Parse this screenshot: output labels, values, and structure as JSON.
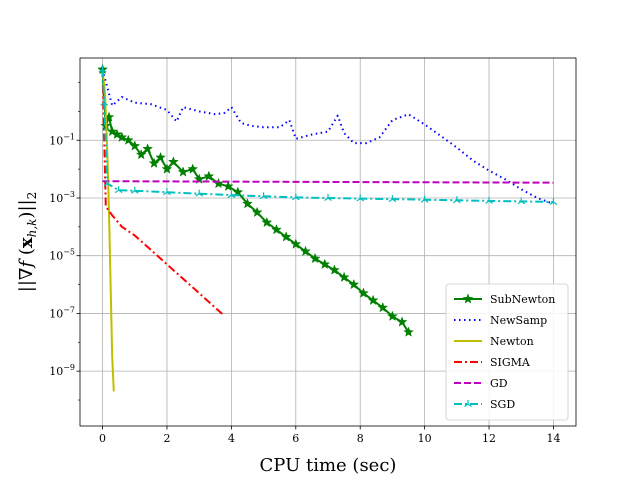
{
  "chart_data": {
    "type": "line",
    "title": "",
    "xlabel": "CPU time (sec)",
    "ylabel": "||∇f(x_{h,k})||_2",
    "ylabel_parts": {
      "norm_open": "||∇",
      "f": "f",
      "paren_open": " (",
      "x": "x",
      "sub": "h,k",
      "paren_close": ")",
      "norm_close": "||",
      "outer_sub": "2"
    },
    "xlim": [
      -0.7,
      14.7
    ],
    "ylim_log10": [
      -10.9,
      1.85
    ],
    "y_scale": "log",
    "grid": true,
    "legend_position": "lower-right",
    "x_ticks": [
      0,
      2,
      4,
      6,
      8,
      10,
      12,
      14
    ],
    "x_tick_labels": [
      "0",
      "2",
      "4",
      "6",
      "8",
      "10",
      "12",
      "14"
    ],
    "y_ticks_log10": [
      -1,
      -3,
      -5,
      -7,
      -9
    ],
    "y_tick_mantissa": "10",
    "y_tick_exponents": [
      "−1",
      "−3",
      "−5",
      "−7",
      "−9"
    ],
    "series": [
      {
        "name": "SubNewton",
        "color": "#008000",
        "dash": "solid",
        "marker": "star",
        "points": [
          [
            0,
            1.45
          ],
          [
            0.1,
            -0.5
          ],
          [
            0.2,
            -0.2
          ],
          [
            0.3,
            -0.7
          ],
          [
            0.45,
            -0.8
          ],
          [
            0.6,
            -0.9
          ],
          [
            0.8,
            -1.0
          ],
          [
            1.0,
            -1.2
          ],
          [
            1.2,
            -1.5
          ],
          [
            1.4,
            -1.3
          ],
          [
            1.6,
            -1.8
          ],
          [
            1.8,
            -1.6
          ],
          [
            2.0,
            -2.0
          ],
          [
            2.2,
            -1.75
          ],
          [
            2.5,
            -2.1
          ],
          [
            2.8,
            -2.0
          ],
          [
            3.0,
            -2.35
          ],
          [
            3.3,
            -2.25
          ],
          [
            3.6,
            -2.5
          ],
          [
            3.9,
            -2.6
          ],
          [
            4.2,
            -2.8
          ],
          [
            4.5,
            -3.2
          ],
          [
            4.8,
            -3.5
          ],
          [
            5.1,
            -3.85
          ],
          [
            5.4,
            -4.1
          ],
          [
            5.7,
            -4.35
          ],
          [
            6.0,
            -4.6
          ],
          [
            6.3,
            -4.85
          ],
          [
            6.6,
            -5.1
          ],
          [
            6.9,
            -5.3
          ],
          [
            7.2,
            -5.5
          ],
          [
            7.5,
            -5.75
          ],
          [
            7.8,
            -6.0
          ],
          [
            8.1,
            -6.3
          ],
          [
            8.4,
            -6.55
          ],
          [
            8.7,
            -6.8
          ],
          [
            9.0,
            -7.1
          ],
          [
            9.3,
            -7.3
          ],
          [
            9.5,
            -7.65
          ]
        ]
      },
      {
        "name": "NewSamp",
        "color": "#0000ff",
        "dash": "dotted",
        "marker": "none",
        "points": [
          [
            0,
            1.45
          ],
          [
            0.3,
            0.2
          ],
          [
            0.6,
            0.5
          ],
          [
            1.0,
            0.3
          ],
          [
            1.5,
            0.25
          ],
          [
            2.0,
            0.05
          ],
          [
            2.3,
            -0.35
          ],
          [
            2.5,
            0.15
          ],
          [
            3.0,
            0.0
          ],
          [
            3.5,
            -0.1
          ],
          [
            3.8,
            -0.05
          ],
          [
            4.0,
            0.15
          ],
          [
            4.3,
            -0.4
          ],
          [
            4.6,
            -0.5
          ],
          [
            5.0,
            -0.55
          ],
          [
            5.5,
            -0.55
          ],
          [
            5.8,
            -0.3
          ],
          [
            6.0,
            -0.95
          ],
          [
            6.5,
            -0.8
          ],
          [
            7.0,
            -0.7
          ],
          [
            7.3,
            -0.15
          ],
          [
            7.5,
            -0.75
          ],
          [
            7.8,
            -1.1
          ],
          [
            8.2,
            -1.1
          ],
          [
            8.6,
            -0.9
          ],
          [
            9.0,
            -0.3
          ],
          [
            9.5,
            -0.1
          ],
          [
            10.0,
            -0.45
          ],
          [
            10.5,
            -0.85
          ],
          [
            11.0,
            -1.25
          ],
          [
            11.5,
            -1.7
          ],
          [
            12.0,
            -2.05
          ],
          [
            12.5,
            -2.35
          ],
          [
            13.0,
            -2.7
          ],
          [
            13.5,
            -3.0
          ],
          [
            14.0,
            -3.2
          ]
        ]
      },
      {
        "name": "Newton",
        "color": "#bfbf00",
        "dash": "solid",
        "marker": "none",
        "points": [
          [
            0,
            1.45
          ],
          [
            0.08,
            0.6
          ],
          [
            0.15,
            -1.5
          ],
          [
            0.2,
            -3.5
          ],
          [
            0.25,
            -6.0
          ],
          [
            0.3,
            -8.5
          ],
          [
            0.35,
            -9.7
          ]
        ]
      },
      {
        "name": "SIGMA",
        "color": "#ff0000",
        "dash": "dashdot",
        "marker": "none",
        "points": [
          [
            0,
            1.45
          ],
          [
            0.05,
            -1.0
          ],
          [
            0.1,
            -3.3
          ],
          [
            0.3,
            -3.6
          ],
          [
            0.6,
            -4.0
          ],
          [
            1.0,
            -4.3
          ],
          [
            1.5,
            -4.8
          ],
          [
            2.0,
            -5.3
          ],
          [
            2.5,
            -5.8
          ],
          [
            3.0,
            -6.3
          ],
          [
            3.5,
            -6.8
          ],
          [
            3.75,
            -7.05
          ]
        ]
      },
      {
        "name": "GD",
        "color": "#bf00bf",
        "dash": "dashed",
        "marker": "none",
        "points": [
          [
            0,
            -2.42
          ],
          [
            14,
            -2.47
          ]
        ]
      },
      {
        "name": "SGD",
        "color": "#00bfbf",
        "dash": "dashdot",
        "marker": "tri",
        "points": [
          [
            0,
            1.45
          ],
          [
            0.05,
            0.3
          ],
          [
            0.15,
            -2.5
          ],
          [
            0.5,
            -2.73
          ],
          [
            1.0,
            -2.75
          ],
          [
            2.0,
            -2.8
          ],
          [
            3.0,
            -2.85
          ],
          [
            4.0,
            -2.9
          ],
          [
            5.0,
            -2.94
          ],
          [
            6.0,
            -2.98
          ],
          [
            7.0,
            -3.0
          ],
          [
            8.0,
            -3.02
          ],
          [
            9.0,
            -3.04
          ],
          [
            10.0,
            -3.06
          ],
          [
            11.0,
            -3.08
          ],
          [
            12.0,
            -3.1
          ],
          [
            13.0,
            -3.12
          ],
          [
            14.0,
            -3.14
          ]
        ]
      }
    ]
  }
}
